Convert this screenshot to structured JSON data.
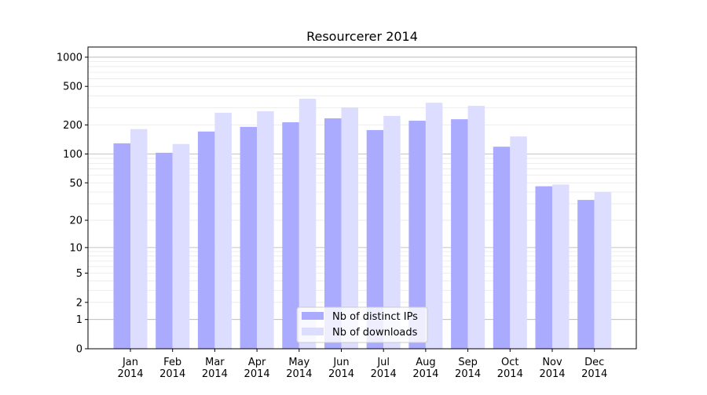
{
  "chart_data": {
    "type": "bar",
    "title": "Resourcerer 2014",
    "xlabel": "",
    "ylabel": "",
    "yscale": "log(1+y)",
    "ylim": [
      0,
      1300
    ],
    "yticks": [
      0,
      1,
      2,
      5,
      10,
      20,
      50,
      100,
      200,
      500,
      1000
    ],
    "grid": true,
    "legend_position": "bottom-center",
    "categories": [
      "Jan\n2014",
      "Feb\n2014",
      "Mar\n2014",
      "Apr\n2014",
      "May\n2014",
      "Jun\n2014",
      "Jul\n2014",
      "Aug\n2014",
      "Sep\n2014",
      "Oct\n2014",
      "Nov\n2014",
      "Dec\n2014"
    ],
    "series": [
      {
        "name": "Nb of distinct IPs",
        "color": "#aaaaff",
        "values": [
          129,
          103,
          171,
          191,
          213,
          234,
          177,
          221,
          229,
          119,
          46,
          33
        ]
      },
      {
        "name": "Nb of downloads",
        "color": "#ddddff",
        "values": [
          181,
          127,
          267,
          277,
          373,
          304,
          248,
          339,
          315,
          152,
          48,
          40
        ]
      }
    ]
  }
}
